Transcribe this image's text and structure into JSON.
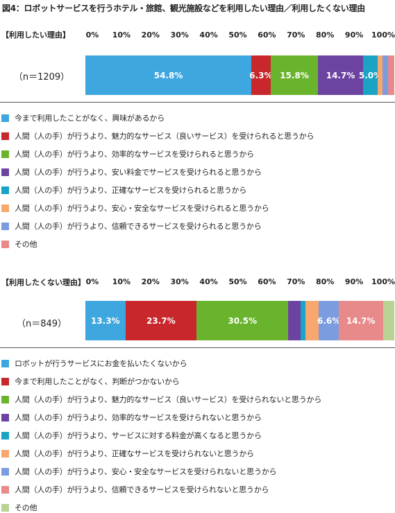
{
  "title": "図4：ロボットサービスを行うホテル・旅館、観光施設などを利用したい理由／利用したくない理由",
  "chart_data": [
    {
      "type": "bar",
      "orientation": "horizontal-stacked-100",
      "section_label": "【利用したい理由】",
      "sample_label": "（n＝1209）",
      "xlim": [
        0,
        100
      ],
      "ticks": [
        "0%",
        "10%",
        "20%",
        "30%",
        "40%",
        "50%",
        "60%",
        "70%",
        "80%",
        "90%",
        "100%"
      ],
      "series": [
        {
          "name": "今まで利用したことがなく、興味があるから",
          "value": 54.8,
          "label": "54.8%",
          "color": "#3fa7e0"
        },
        {
          "name": "人間（人の手）が行うより、魅力的なサービス（良いサービス）を受けられると思うから",
          "value": 6.3,
          "label": "6.3%",
          "color": "#c8272c"
        },
        {
          "name": "人間（人の手）が行うより、効率的なサービスを受けられると思うから",
          "value": 15.8,
          "label": "15.8%",
          "color": "#6ab42d"
        },
        {
          "name": "人間（人の手）が行うより、安い料金でサービスを受けられると思うから",
          "value": 14.7,
          "label": "14.7%",
          "color": "#6c43a0"
        },
        {
          "name": "人間（人の手）が行うより、正確なサービスを受けられると思うから",
          "value": 5.0,
          "label": "5.0%",
          "color": "#19a4c6"
        },
        {
          "name": "人間（人の手）が行うより、安心・安全なサービスを受けられると思うから",
          "value": 1.5,
          "label": "",
          "color": "#f8a86e"
        },
        {
          "name": "人間（人の手）が行うより、信頼できるサービスを受けられると思うから",
          "value": 1.9,
          "label": "",
          "color": "#7b9cde"
        },
        {
          "name": "その他",
          "value": 2.0,
          "label": "",
          "color": "#e88a8a"
        }
      ]
    },
    {
      "type": "bar",
      "orientation": "horizontal-stacked-100",
      "section_label": "【利用したくない理由】",
      "sample_label": "（n＝849）",
      "xlim": [
        0,
        100
      ],
      "ticks": [
        "0%",
        "10%",
        "20%",
        "30%",
        "40%",
        "50%",
        "60%",
        "70%",
        "80%",
        "90%",
        "100%"
      ],
      "series": [
        {
          "name": "ロボットが行うサービスにお金を払いたくないから",
          "value": 13.3,
          "label": "13.3%",
          "color": "#3fa7e0"
        },
        {
          "name": "今まで利用したことがなく、判断がつかないから",
          "value": 23.7,
          "label": "23.7%",
          "color": "#c8272c"
        },
        {
          "name": "人間（人の手）が行うより、魅力的なサービス（良いサービス）を受けられないと思うから",
          "value": 30.5,
          "label": "30.5%",
          "color": "#6ab42d"
        },
        {
          "name": "人間（人の手）が行うより、効率的なサービスを受けられないと思うから",
          "value": 4.2,
          "label": "",
          "color": "#6c43a0"
        },
        {
          "name": "人間（人の手）が行うより、サービスに対する料金が高くなると思うから",
          "value": 1.6,
          "label": "",
          "color": "#19a4c6"
        },
        {
          "name": "人間（人の手）が行うより、正確なサービスを受けられないと思うから",
          "value": 4.4,
          "label": "",
          "color": "#f8a86e"
        },
        {
          "name": "人間（人の手）が行うより、安心・安全なサービスを受けられないと思うから",
          "value": 6.6,
          "label": "6.6%",
          "color": "#7b9cde"
        },
        {
          "name": "人間（人の手）が行うより、信頼できるサービスを受けられないと思うから",
          "value": 14.7,
          "label": "14.7%",
          "color": "#e88a8a"
        },
        {
          "name": "その他",
          "value": 3.8,
          "label": "",
          "color": "#b9d394"
        }
      ]
    }
  ]
}
